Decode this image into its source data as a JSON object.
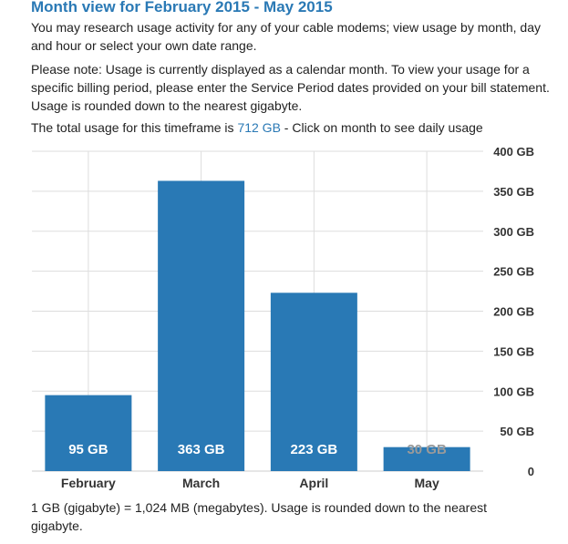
{
  "page": {
    "title": "Month view for February 2015 - May 2015",
    "intro": "You may research usage activity for any of your cable modems; view usage by month, day and hour or select your own date range.",
    "note": "Please note: Usage is currently displayed as a calendar month. To view your usage for a specific billing period, please enter the Service Period dates provided on your bill statement. Usage is rounded down to the nearest gigabyte.",
    "total_prefix": "The total usage for this timeframe is ",
    "total_value": "712 GB",
    "total_suffix": " - Click on month to see daily usage",
    "footnote": "1 GB (gigabyte) = 1,024 MB (megabytes). Usage is rounded down to the nearest gigabyte."
  },
  "chart_data": {
    "type": "bar",
    "categories": [
      "February",
      "March",
      "April",
      "May"
    ],
    "values": [
      95,
      363,
      223,
      30
    ],
    "data_labels": [
      "95 GB",
      "363 GB",
      "223 GB",
      "30 GB"
    ],
    "ylim": [
      0,
      400
    ],
    "y_ticks": [
      {
        "value": 0,
        "label": "0"
      },
      {
        "value": 50,
        "label": "50 GB"
      },
      {
        "value": 100,
        "label": "100 GB"
      },
      {
        "value": 150,
        "label": "150 GB"
      },
      {
        "value": 200,
        "label": "200 GB"
      },
      {
        "value": 250,
        "label": "250 GB"
      },
      {
        "value": 300,
        "label": "300 GB"
      },
      {
        "value": 350,
        "label": "350 GB"
      },
      {
        "value": 400,
        "label": "400 GB"
      }
    ],
    "y_axis_position": "right",
    "grid": true,
    "bar_color": "#2979b5",
    "grid_color": "#dddddd",
    "label_color": "#ffffff",
    "small_label_color": "#9a9a9a"
  }
}
